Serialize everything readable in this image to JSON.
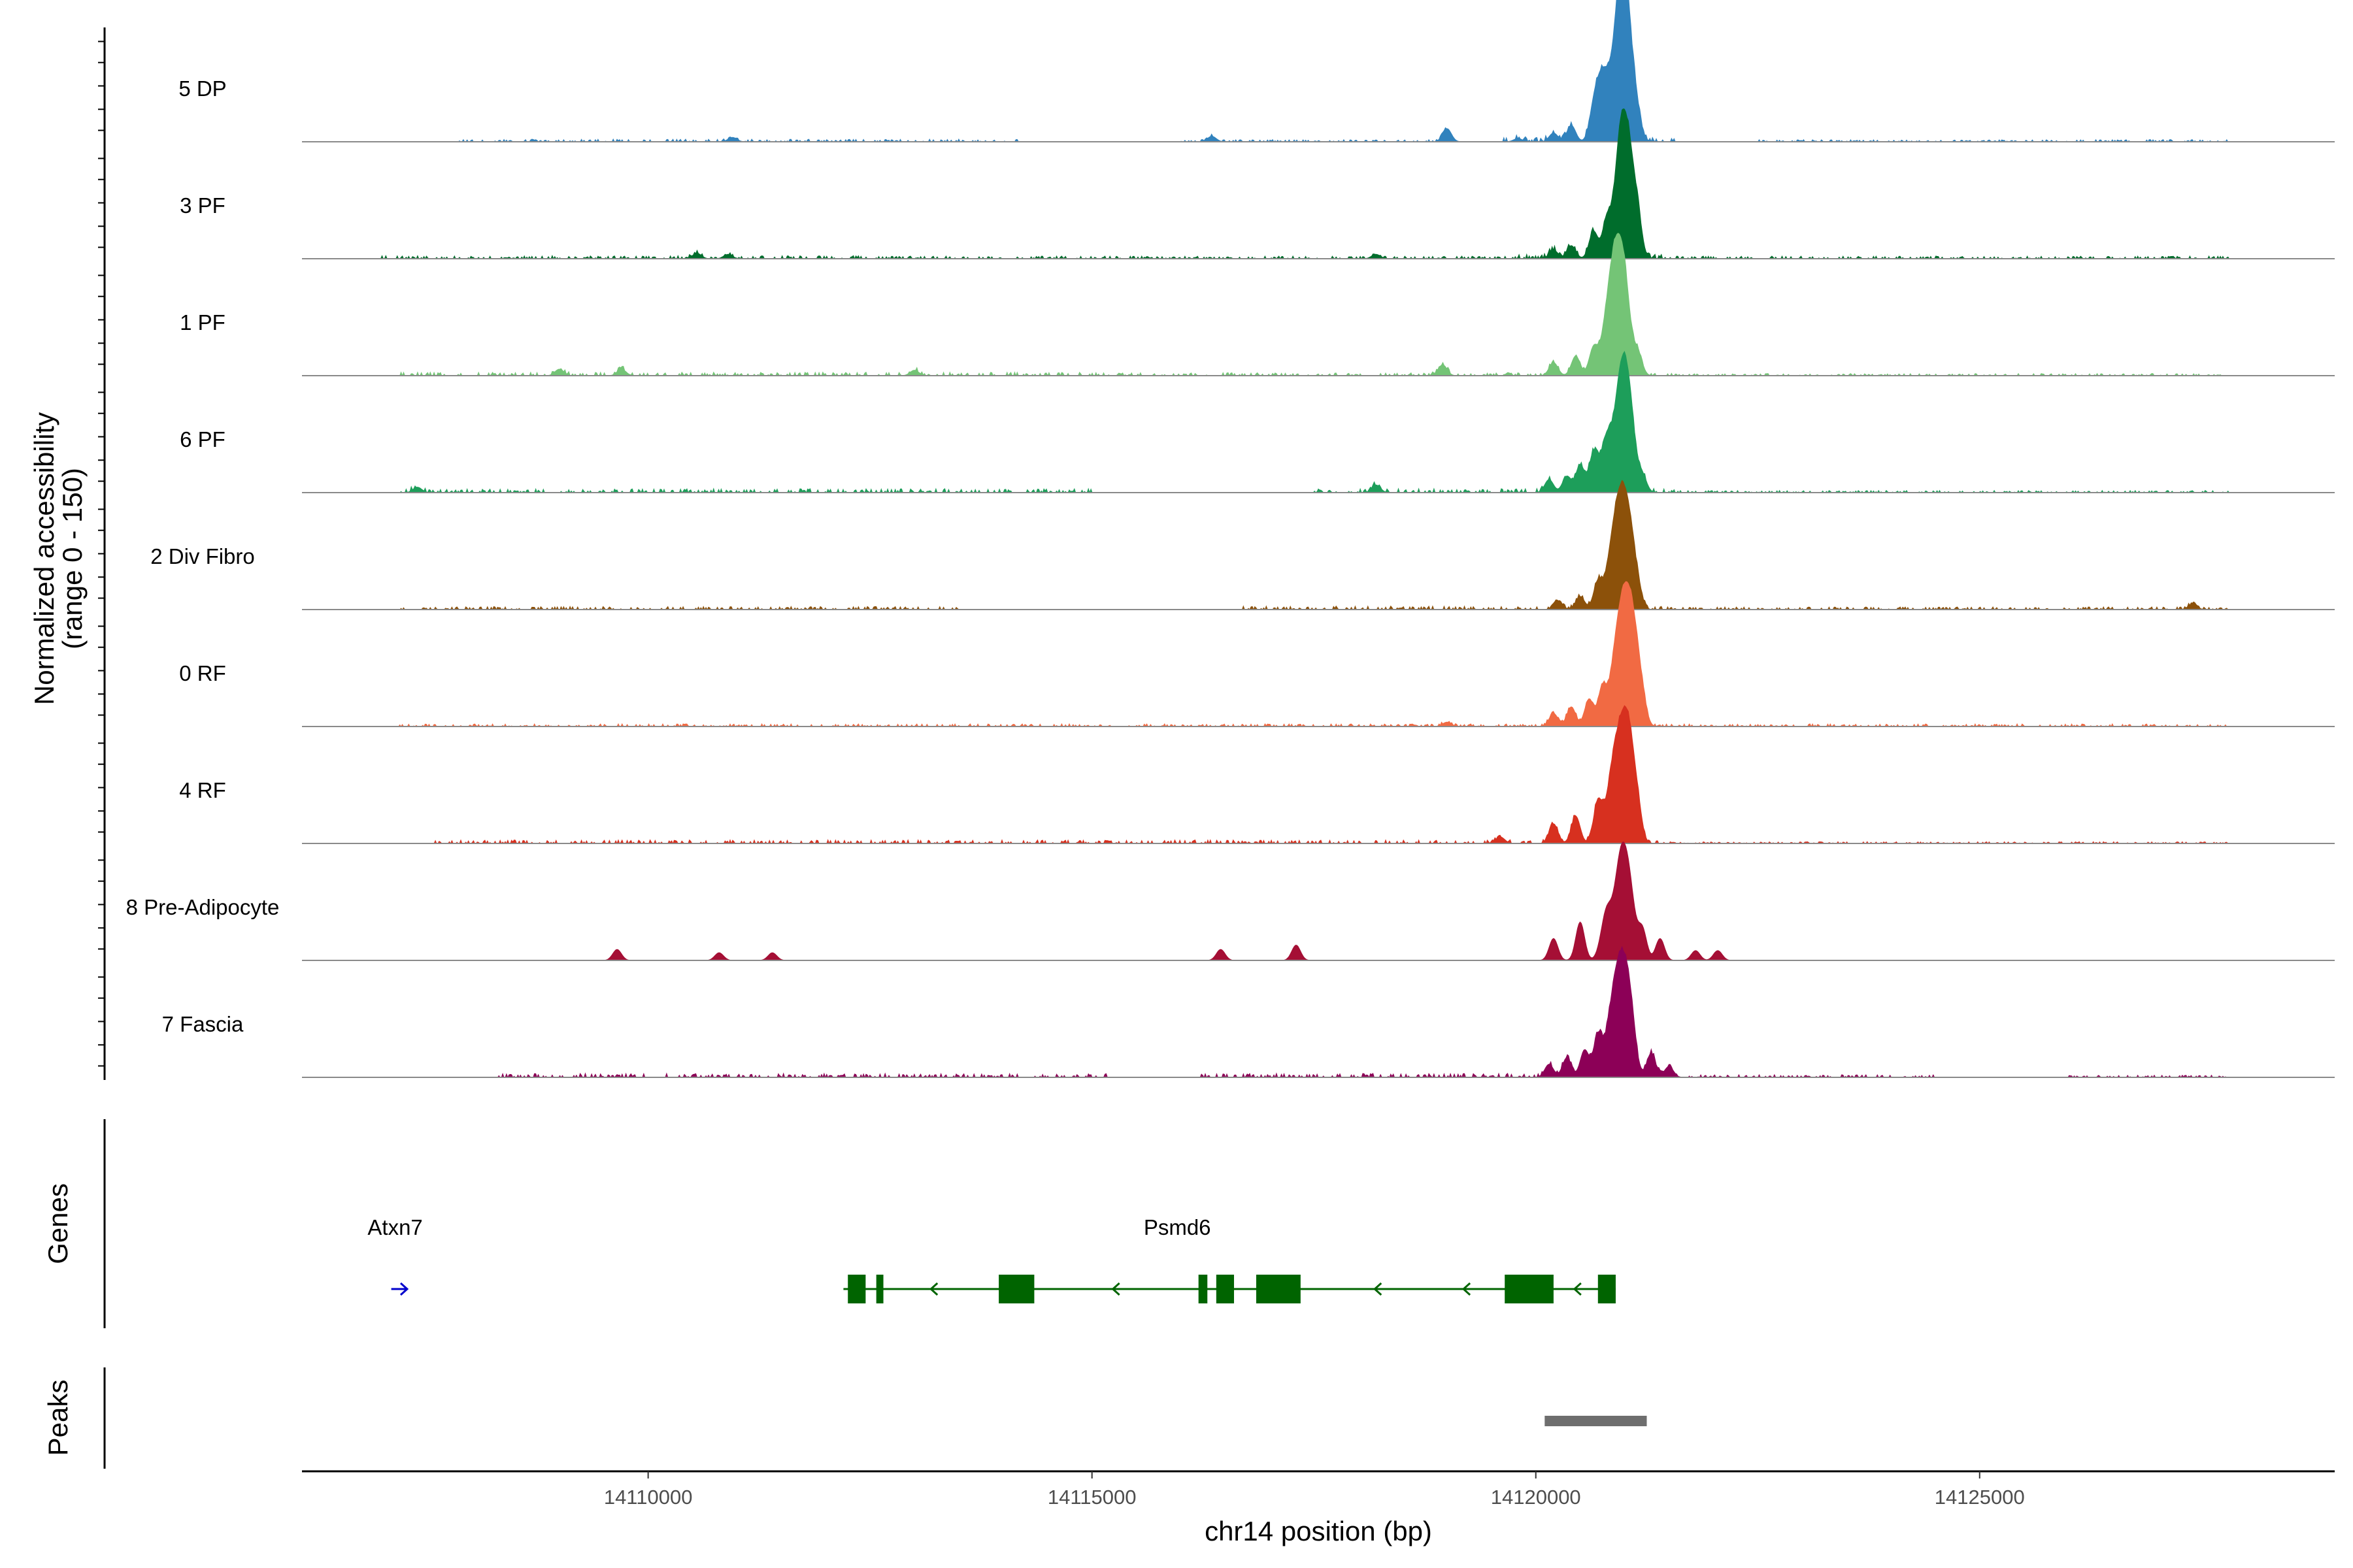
{
  "chart_data": {
    "type": "area",
    "title": "",
    "ylabel": "Normalized accessibility",
    "ylabel_range": "(range 0 - 150)",
    "xlabel": "chr14 position (bp)",
    "xlim": [
      14106100,
      14129000
    ],
    "ylim": [
      0,
      150
    ],
    "x_ticks": [
      14110000,
      14115000,
      14120000,
      14125000
    ],
    "x_tick_labels": [
      "14110000",
      "14115000",
      "14120000",
      "14125000"
    ],
    "tracks": [
      {
        "name": "5 DP",
        "color": "#3182BD",
        "noise": 0.035,
        "seed": 5,
        "peaks": [
          [
            14120650,
            25
          ],
          [
            14120750,
            60
          ],
          [
            14120850,
            30
          ],
          [
            14120950,
            100
          ],
          [
            14121000,
            85
          ],
          [
            14121100,
            45
          ],
          [
            14120400,
            15
          ],
          [
            14120200,
            8
          ],
          [
            14119000,
            12
          ],
          [
            14110950,
            4
          ],
          [
            14116350,
            5
          ],
          [
            14119800,
            3
          ]
        ],
        "noise_ranges": [
          [
            14107800,
            14114200,
            0.6
          ],
          [
            14116000,
            14119000,
            0.5
          ],
          [
            14119600,
            14121600,
            1.0
          ],
          [
            14122500,
            14127800,
            0.5
          ]
        ]
      },
      {
        "name": "3 PF",
        "color": "#006D2C",
        "noise": 0.035,
        "seed": 3,
        "peaks": [
          [
            14120650,
            25
          ],
          [
            14120800,
            35
          ],
          [
            14120950,
            100
          ],
          [
            14121050,
            85
          ],
          [
            14121150,
            30
          ],
          [
            14120400,
            12
          ],
          [
            14120200,
            8
          ],
          [
            14110550,
            5
          ],
          [
            14110900,
            4
          ],
          [
            14118200,
            4
          ]
        ],
        "noise_ranges": [
          [
            14107000,
            14112500,
            0.7
          ],
          [
            14112500,
            14119800,
            0.6
          ],
          [
            14119800,
            14121500,
            1.0
          ],
          [
            14121500,
            14127800,
            0.6
          ]
        ]
      },
      {
        "name": "1 PF",
        "color": "#74C476",
        "noise": 0.04,
        "seed": 1,
        "peaks": [
          [
            14120200,
            12
          ],
          [
            14120450,
            18
          ],
          [
            14120650,
            25
          ],
          [
            14120800,
            45
          ],
          [
            14120900,
            90
          ],
          [
            14121000,
            80
          ],
          [
            14121150,
            20
          ],
          [
            14118950,
            10
          ],
          [
            14109000,
            6
          ],
          [
            14109700,
            6
          ],
          [
            14113000,
            5
          ]
        ],
        "noise_ranges": [
          [
            14107200,
            14115000,
            0.8
          ],
          [
            14115000,
            14121600,
            0.7
          ],
          [
            14121600,
            14127800,
            0.5
          ]
        ]
      },
      {
        "name": "6 PF",
        "color": "#1D9E5A",
        "noise": 0.04,
        "seed": 6,
        "peaks": [
          [
            14120150,
            12
          ],
          [
            14120350,
            15
          ],
          [
            14120500,
            25
          ],
          [
            14120650,
            35
          ],
          [
            14120800,
            50
          ],
          [
            14120950,
            90
          ],
          [
            14121050,
            80
          ],
          [
            14121200,
            15
          ],
          [
            14118200,
            7
          ],
          [
            14107400,
            5
          ]
        ],
        "noise_ranges": [
          [
            14107200,
            14115000,
            0.9
          ],
          [
            14117500,
            14121600,
            0.9
          ],
          [
            14121600,
            14127800,
            0.5
          ]
        ]
      },
      {
        "name": "2 Div Fibro",
        "color": "#8C510A",
        "noise": 0.04,
        "seed": 2,
        "peaks": [
          [
            14120500,
            12
          ],
          [
            14120700,
            25
          ],
          [
            14120850,
            45
          ],
          [
            14120950,
            80
          ],
          [
            14121050,
            70
          ],
          [
            14121150,
            15
          ],
          [
            14120250,
            8
          ],
          [
            14127400,
            5
          ]
        ],
        "noise_ranges": [
          [
            14107200,
            14113500,
            0.7
          ],
          [
            14116700,
            14121500,
            0.8
          ],
          [
            14121500,
            14127800,
            0.6
          ]
        ]
      },
      {
        "name": "0 RF",
        "color": "#F16A43",
        "noise": 0.035,
        "seed": 10,
        "peaks": [
          [
            14120200,
            12
          ],
          [
            14120400,
            18
          ],
          [
            14120600,
            25
          ],
          [
            14120750,
            35
          ],
          [
            14120900,
            60
          ],
          [
            14121000,
            90
          ],
          [
            14121100,
            80
          ],
          [
            14121200,
            20
          ],
          [
            14119000,
            4
          ]
        ],
        "noise_ranges": [
          [
            14107200,
            14114000,
            0.6
          ],
          [
            14114000,
            14121600,
            0.6
          ],
          [
            14121600,
            14127800,
            0.6
          ]
        ]
      },
      {
        "name": "4 RF",
        "color": "#D7301F",
        "noise": 0.045,
        "seed": 4,
        "peaks": [
          [
            14120200,
            18
          ],
          [
            14120450,
            25
          ],
          [
            14120700,
            38
          ],
          [
            14120850,
            50
          ],
          [
            14120950,
            75
          ],
          [
            14121050,
            90
          ],
          [
            14121150,
            25
          ],
          [
            14119600,
            6
          ]
        ],
        "noise_ranges": [
          [
            14107600,
            14121500,
            0.8
          ],
          [
            14121500,
            14127800,
            0.4
          ]
        ]
      },
      {
        "name": "8 Pre-Adipocyte",
        "color": "#A50F35",
        "noise": 0.0,
        "seed": 8,
        "peaks": [
          [
            14120200,
            20
          ],
          [
            14120500,
            35
          ],
          [
            14120800,
            45
          ],
          [
            14120950,
            80
          ],
          [
            14121050,
            65
          ],
          [
            14121200,
            28
          ],
          [
            14121400,
            20
          ],
          [
            14109650,
            10
          ],
          [
            14110800,
            7
          ],
          [
            14111400,
            7
          ],
          [
            14116450,
            10
          ],
          [
            14117300,
            14
          ],
          [
            14121800,
            9
          ],
          [
            14122050,
            9
          ]
        ],
        "noise_ranges": []
      },
      {
        "name": "7 Fascia",
        "color": "#8C0057",
        "noise": 0.05,
        "seed": 7,
        "peaks": [
          [
            14120150,
            12
          ],
          [
            14120350,
            18
          ],
          [
            14120550,
            25
          ],
          [
            14120700,
            38
          ],
          [
            14120850,
            50
          ],
          [
            14120950,
            80
          ],
          [
            14121050,
            70
          ],
          [
            14121300,
            22
          ],
          [
            14121500,
            10
          ]
        ],
        "noise_ranges": [
          [
            14108300,
            14115200,
            0.9
          ],
          [
            14116200,
            14121800,
            0.9
          ],
          [
            14121800,
            14124500,
            0.6
          ],
          [
            14126000,
            14127800,
            0.5
          ]
        ]
      }
    ],
    "genes_track": {
      "label": "Genes",
      "genes": [
        {
          "name": "Atxn7",
          "strand": "+",
          "color": "#0000CC",
          "start": 14107150,
          "end": 14107300,
          "exons": []
        },
        {
          "name": "Psmd6",
          "strand": "-",
          "color": "#006400",
          "start": 14112200,
          "end": 14120900,
          "exons": [
            [
              14112250,
              14112450
            ],
            [
              14112570,
              14112650
            ],
            [
              14113950,
              14114350
            ],
            [
              14116200,
              14116300
            ],
            [
              14116400,
              14116600
            ],
            [
              14116850,
              14117350
            ],
            [
              14119650,
              14120200
            ],
            [
              14120700,
              14120900
            ]
          ]
        }
      ]
    },
    "peaks_track": {
      "label": "Peaks",
      "color": "#6E6E6E",
      "intervals": [
        [
          14120100,
          14121250
        ]
      ]
    }
  }
}
